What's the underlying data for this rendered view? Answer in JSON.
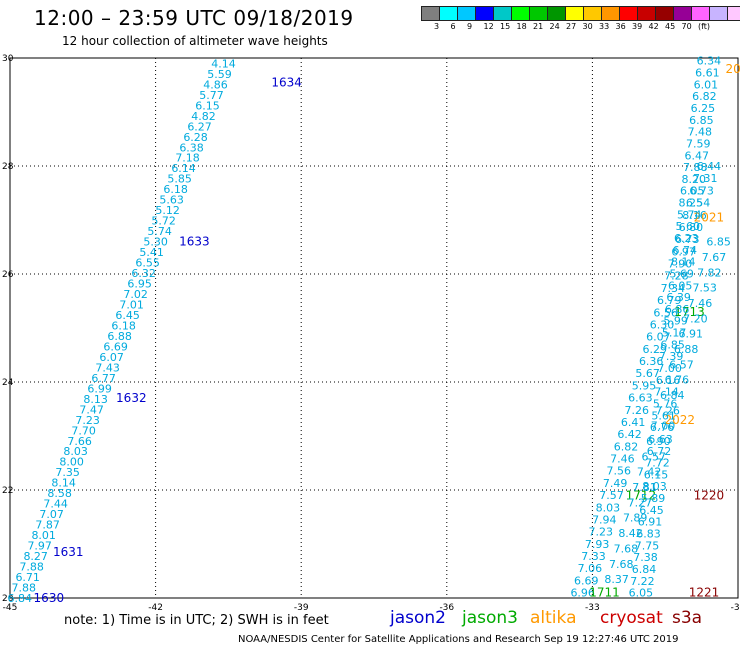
{
  "header": {
    "title": "12:00 – 23:59 UTC 09/18/2019",
    "subtitle": "12 hour collection of altimeter wave heights"
  },
  "colorbar": {
    "colors": [
      "#7f7f7f",
      "#00ffff",
      "#00c8ff",
      "#0000ff",
      "#00c8c8",
      "#00ff00",
      "#00c800",
      "#009600",
      "#ffff00",
      "#ffc800",
      "#ff9600",
      "#ff0000",
      "#c80000",
      "#960000",
      "#960096",
      "#ff64ff",
      "#c8b4ff",
      "#ffc8ff",
      "#000000"
    ],
    "labels": [
      "3",
      "6",
      "9",
      "12",
      "15",
      "18",
      "21",
      "24",
      "27",
      "30",
      "33",
      "36",
      "39",
      "42",
      "45",
      "70",
      "(ft)"
    ]
  },
  "footer": {
    "note": "note: 1) Time is in UTC; 2) SWH is in feet",
    "credit": "NOAA/NESDIS Center for Satellite Applications and Research   Sep 19 12:27:46 UTC 2019"
  },
  "legend": [
    {
      "name": "jason2",
      "color": "#0000cc"
    },
    {
      "name": "jason3",
      "color": "#00aa00"
    },
    {
      "name": "altika",
      "color": "#ff9900"
    },
    {
      "name": "cryosat",
      "color": "#cc0000"
    },
    {
      "name": "s3a",
      "color": "#880000"
    }
  ],
  "chart_data": {
    "type": "scatter",
    "xlim": [
      -45,
      -30
    ],
    "ylim": [
      20,
      30
    ],
    "x_ticks": [
      "-45",
      "-42",
      "-39",
      "-36",
      "-33",
      "-30"
    ],
    "y_ticks": [
      "20",
      "22",
      "24",
      "26",
      "28",
      "30"
    ],
    "grid": true,
    "colors": {
      "jason2": "#0000cc",
      "jason3": "#00aa00",
      "altika": "#ff9900",
      "cryosat": "#cc0000",
      "s3a": "#880000",
      "swh": "#00aadd"
    },
    "series": [
      {
        "name": "jason2",
        "start": [
          -44.8,
          20.0
        ],
        "end": [
          -40.6,
          29.9
        ],
        "swh": [
          "6.84",
          "7.88",
          "6.71",
          "7.88",
          "8.27",
          "7.97",
          "8.01",
          "7.87",
          "7.07",
          "7.44",
          "8.58",
          "8.14",
          "7.35",
          "8.00",
          "8.03",
          "7.66",
          "7.70",
          "7.23",
          "7.47",
          "8.13",
          "6.99",
          "6.77",
          "7.43",
          "6.07",
          "6.69",
          "6.88",
          "6.18",
          "6.45",
          "7.01",
          "7.02",
          "6.95",
          "6.32",
          "6.55",
          "5.41",
          "5.30",
          "5.74",
          "5.72",
          "5.12",
          "5.63",
          "6.18",
          "5.85",
          "6.14",
          "7.18",
          "6.38",
          "6.28",
          "6.27",
          "4.82",
          "6.15",
          "5.77",
          "4.86",
          "5.59",
          "4.14"
        ],
        "passes": [
          {
            "label": "1630",
            "x": -44.2,
            "y": 20.0
          },
          {
            "label": "1631",
            "x": -43.8,
            "y": 20.85
          },
          {
            "label": "1632",
            "x": -42.5,
            "y": 23.7
          },
          {
            "label": "1633",
            "x": -41.2,
            "y": 26.6
          },
          {
            "label": "1634",
            "x": -39.3,
            "y": 29.55
          }
        ]
      },
      {
        "name": "jason3",
        "start": [
          -33.2,
          20.1
        ],
        "end": [
          -30.6,
          28.0
        ],
        "swh": [
          "6.96",
          "6.69",
          "7.06",
          "7.33",
          "7.93",
          "7.23",
          "7.94",
          "8.03",
          "7.57",
          "7.49",
          "7.56",
          "7.46",
          "6.82",
          "6.42",
          "6.41",
          "7.26",
          "6.63",
          "5.95",
          "5.67",
          "6.36",
          "6.29",
          "6.07",
          "6.30",
          "6.56",
          "6.79",
          "7.34",
          "7.28",
          "7.90",
          "6.97",
          "6.73",
          "6.80",
          "8.16",
          "6.54",
          "6.73",
          "7.31",
          "6.44"
        ],
        "passes": [
          {
            "label": "1711",
            "x": -32.75,
            "y": 20.1
          },
          {
            "label": "1712",
            "x": -32.0,
            "y": 21.9
          },
          {
            "label": "1713",
            "x": -31.0,
            "y": 25.3
          }
        ]
      },
      {
        "name": "jason3-b",
        "start": [
          -32.5,
          20.35
        ],
        "end": [
          -30.4,
          26.6
        ],
        "swh": [
          "8.37",
          "7.68",
          "7.68",
          "8.42",
          "7.89",
          "7.27",
          "7.81",
          "7.42",
          "6.57",
          "6.90",
          "7.00",
          "7.26",
          "6.84",
          "6.76",
          "6.57",
          "6.88",
          "6.91",
          "7.20",
          "7.46",
          "7.53",
          "7.82",
          "7.67",
          "6.85"
        ],
        "passes": []
      },
      {
        "name": "altika",
        "start": [
          -30.5,
          22.9
        ],
        "end": [
          -30.5,
          29.9
        ],
        "swh": [],
        "passes": [
          {
            "label": "2022",
            "x": -31.2,
            "y": 23.3
          },
          {
            "label": "2021",
            "x": -30.6,
            "y": 27.05
          },
          {
            "label": "20",
            "x": -30.1,
            "y": 29.8
          }
        ]
      },
      {
        "name": "s3a",
        "start": [
          -31.2,
          20.1
        ],
        "end": [
          -30.0,
          25.5
        ],
        "swh": [],
        "passes": [
          {
            "label": "1221",
            "x": -30.7,
            "y": 20.1
          },
          {
            "label": "1220",
            "x": -30.6,
            "y": 21.9
          }
        ]
      },
      {
        "name": "swh-right",
        "start": [
          -32.0,
          20.1
        ],
        "end": [
          -30.6,
          29.95
        ],
        "swh": [
          "6.05",
          "7.22",
          "6.84",
          "7.38",
          "7.75",
          "6.83",
          "6.91",
          "6.45",
          "5.89",
          "8.03",
          "6.15",
          "7.72",
          "6.72",
          "6.63",
          "6.76",
          "5.61",
          "5.76",
          "7.14",
          "6.16",
          "7.00",
          "7.39",
          "6.85",
          "5.17",
          "5.99",
          "6.86",
          "6.39",
          "6.05",
          "5.69",
          "8.14",
          "6.74",
          "6.23",
          "5.60",
          "5.74",
          "8.25",
          "6.05",
          "8.20",
          "7.88",
          "6.47",
          "7.59",
          "7.48",
          "6.85",
          "6.25",
          "6.82",
          "6.01",
          "6.61",
          "6.34"
        ],
        "passes": []
      }
    ]
  }
}
